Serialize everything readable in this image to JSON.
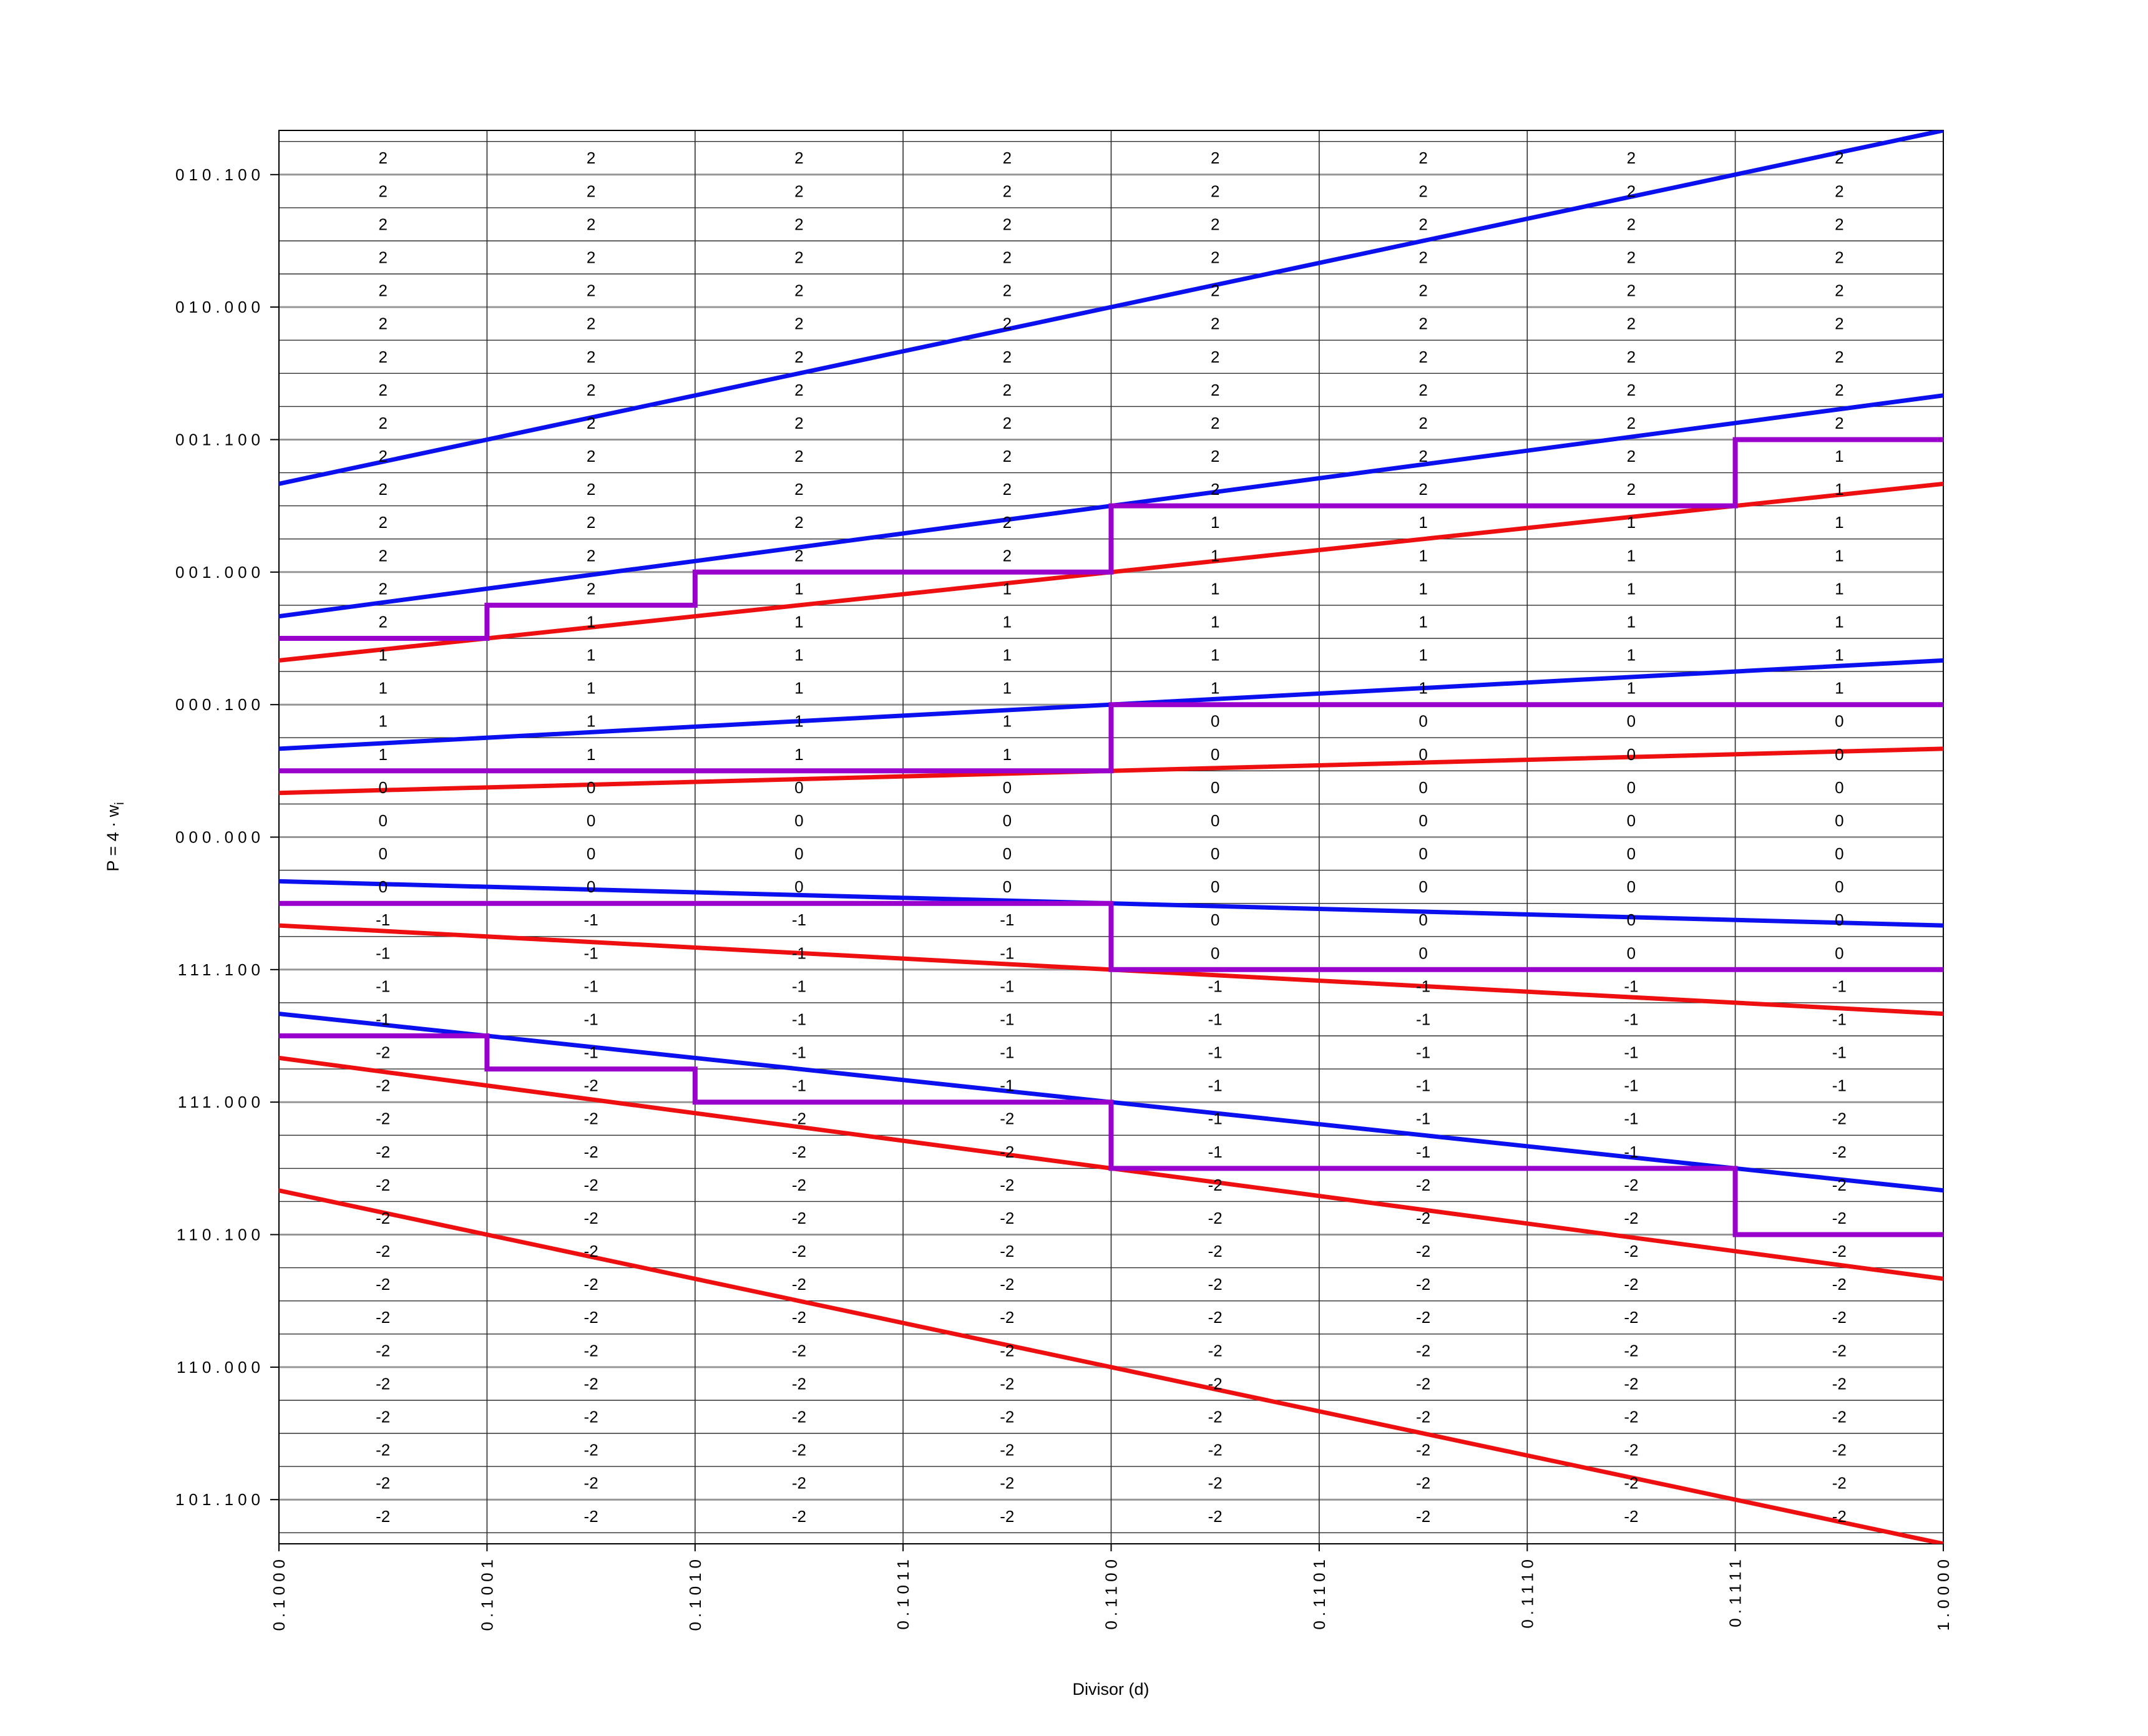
{
  "chart_data": {
    "type": "table",
    "title": "",
    "xlabel": "Divisor (d)",
    "ylabel_main": "P = 4 · w",
    "ylabel_sub": "i",
    "x_range": [
      0.5,
      1.0
    ],
    "y_range": [
      -2.6666667,
      2.6666667
    ],
    "grid": "on",
    "x_ticks": [
      {
        "value": 0.5,
        "label": "0.1000"
      },
      {
        "value": 0.5625,
        "label": "0.1001"
      },
      {
        "value": 0.625,
        "label": "0.1010"
      },
      {
        "value": 0.6875,
        "label": "0.1011"
      },
      {
        "value": 0.75,
        "label": "0.1100"
      },
      {
        "value": 0.8125,
        "label": "0.1101"
      },
      {
        "value": 0.875,
        "label": "0.1110"
      },
      {
        "value": 0.9375,
        "label": "0.1111"
      },
      {
        "value": 1.0,
        "label": "1.0000"
      }
    ],
    "y_ticks": [
      {
        "value": 2.5,
        "label": "010.100"
      },
      {
        "value": 2.0,
        "label": "010.000"
      },
      {
        "value": 1.5,
        "label": "001.100"
      },
      {
        "value": 1.0,
        "label": "001.000"
      },
      {
        "value": 0.5,
        "label": "000.100"
      },
      {
        "value": 0.0,
        "label": "000.000"
      },
      {
        "value": -0.5,
        "label": "111.100"
      },
      {
        "value": -1.0,
        "label": "111.000"
      },
      {
        "value": -1.5,
        "label": "110.100"
      },
      {
        "value": -2.0,
        "label": "110.000"
      },
      {
        "value": -2.5,
        "label": "101.100"
      }
    ],
    "row_grid_step": 0.125,
    "row_grid_min": -2.625,
    "row_grid_max": 2.625,
    "cell_row_top_bottom": 2.5,
    "cell_row_step": 0.125,
    "cell_row_count": 42,
    "column_count": 8,
    "blue_lines": [
      {
        "coef": "8/3",
        "slope": 2.6666667
      },
      {
        "coef": "5/3",
        "slope": 1.6666667
      },
      {
        "coef": "2/3",
        "slope": 0.6666667
      },
      {
        "coef": "-1/3",
        "slope": -0.3333333
      },
      {
        "coef": "-4/3",
        "slope": -1.3333333
      }
    ],
    "red_lines": [
      {
        "coef": "4/3",
        "slope": 1.3333333
      },
      {
        "coef": "1/3",
        "slope": 0.3333333
      },
      {
        "coef": "-2/3",
        "slope": -0.6666667
      },
      {
        "coef": "-5/3",
        "slope": -1.6666667
      },
      {
        "coef": "-8/3",
        "slope": -2.6666667
      }
    ],
    "staircases": [
      {
        "name": "select-2-vs-1",
        "levels": [
          0.75,
          0.875,
          1.0,
          1.0,
          1.25,
          1.25,
          1.25,
          1.5
        ]
      },
      {
        "name": "select-1-vs-0",
        "levels": [
          0.25,
          0.25,
          0.25,
          0.25,
          0.5,
          0.5,
          0.5,
          0.5
        ]
      },
      {
        "name": "select-0-vs-m1",
        "levels": [
          -0.25,
          -0.25,
          -0.25,
          -0.25,
          -0.5,
          -0.5,
          -0.5,
          -0.5
        ]
      },
      {
        "name": "select-m1-vs-m2",
        "levels": [
          -0.75,
          -0.875,
          -1.0,
          -1.0,
          -1.25,
          -1.25,
          -1.25,
          -1.5
        ]
      }
    ],
    "cell_digits": [
      [
        2,
        2,
        2,
        2,
        2,
        2,
        2,
        2
      ],
      [
        2,
        2,
        2,
        2,
        2,
        2,
        2,
        2
      ],
      [
        2,
        2,
        2,
        2,
        2,
        2,
        2,
        2
      ],
      [
        2,
        2,
        2,
        2,
        2,
        2,
        2,
        2
      ],
      [
        2,
        2,
        2,
        2,
        2,
        2,
        2,
        2
      ],
      [
        2,
        2,
        2,
        2,
        2,
        2,
        2,
        2
      ],
      [
        2,
        2,
        2,
        2,
        2,
        2,
        2,
        2
      ],
      [
        2,
        2,
        2,
        2,
        2,
        2,
        2,
        2
      ],
      [
        2,
        2,
        2,
        2,
        2,
        2,
        2,
        2
      ],
      [
        2,
        2,
        2,
        2,
        2,
        2,
        2,
        1
      ],
      [
        2,
        2,
        2,
        2,
        2,
        2,
        2,
        1
      ],
      [
        2,
        2,
        2,
        2,
        1,
        1,
        1,
        1
      ],
      [
        2,
        2,
        2,
        2,
        1,
        1,
        1,
        1
      ],
      [
        2,
        2,
        1,
        1,
        1,
        1,
        1,
        1
      ],
      [
        2,
        1,
        1,
        1,
        1,
        1,
        1,
        1
      ],
      [
        1,
        1,
        1,
        1,
        1,
        1,
        1,
        1
      ],
      [
        1,
        1,
        1,
        1,
        1,
        1,
        1,
        1
      ],
      [
        1,
        1,
        1,
        1,
        0,
        0,
        0,
        0
      ],
      [
        1,
        1,
        1,
        1,
        0,
        0,
        0,
        0
      ],
      [
        0,
        0,
        0,
        0,
        0,
        0,
        0,
        0
      ],
      [
        0,
        0,
        0,
        0,
        0,
        0,
        0,
        0
      ],
      [
        0,
        0,
        0,
        0,
        0,
        0,
        0,
        0
      ],
      [
        0,
        0,
        0,
        0,
        0,
        0,
        0,
        0
      ],
      [
        -1,
        -1,
        -1,
        -1,
        0,
        0,
        0,
        0
      ],
      [
        -1,
        -1,
        -1,
        -1,
        0,
        0,
        0,
        0
      ],
      [
        -1,
        -1,
        -1,
        -1,
        -1,
        -1,
        -1,
        -1
      ],
      [
        -1,
        -1,
        -1,
        -1,
        -1,
        -1,
        -1,
        -1
      ],
      [
        -2,
        -1,
        -1,
        -1,
        -1,
        -1,
        -1,
        -1
      ],
      [
        -2,
        -2,
        -1,
        -1,
        -1,
        -1,
        -1,
        -1
      ],
      [
        -2,
        -2,
        -2,
        -2,
        -1,
        -1,
        -1,
        -2
      ],
      [
        -2,
        -2,
        -2,
        -2,
        -1,
        -1,
        -1,
        -2
      ],
      [
        -2,
        -2,
        -2,
        -2,
        -2,
        -2,
        -2,
        -2
      ],
      [
        -2,
        -2,
        -2,
        -2,
        -2,
        -2,
        -2,
        -2
      ],
      [
        -2,
        -2,
        -2,
        -2,
        -2,
        -2,
        -2,
        -2
      ],
      [
        -2,
        -2,
        -2,
        -2,
        -2,
        -2,
        -2,
        -2
      ],
      [
        -2,
        -2,
        -2,
        -2,
        -2,
        -2,
        -2,
        -2
      ],
      [
        -2,
        -2,
        -2,
        -2,
        -2,
        -2,
        -2,
        -2
      ],
      [
        -2,
        -2,
        -2,
        -2,
        -2,
        -2,
        -2,
        -2
      ],
      [
        -2,
        -2,
        -2,
        -2,
        -2,
        -2,
        -2,
        -2
      ],
      [
        -2,
        -2,
        -2,
        -2,
        -2,
        -2,
        -2,
        -2
      ],
      [
        -2,
        -2,
        -2,
        -2,
        -2,
        -2,
        -2,
        -2
      ],
      [
        -2,
        -2,
        -2,
        -2,
        -2,
        -2,
        -2,
        -2
      ]
    ],
    "colors": {
      "blue_line": "#0b10ee",
      "red_line": "#ee1010",
      "purple_line": "#9900cc",
      "grid_minor": "#2e2e2e",
      "grid_major": "#969696",
      "frame": "#000000",
      "text": "#000000"
    },
    "legend": "none"
  }
}
